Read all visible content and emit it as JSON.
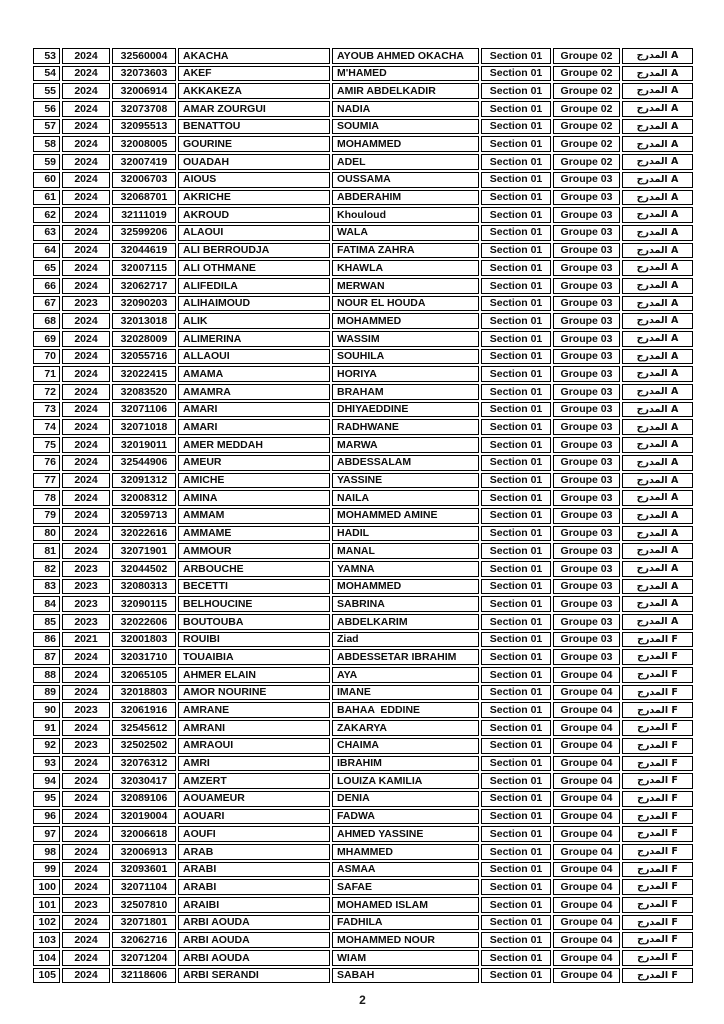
{
  "page": {
    "number": "2"
  },
  "colors": {
    "border": "#000000",
    "text": "#0d0d0d",
    "background": "#ffffff"
  },
  "table": {
    "rows": [
      {
        "no": "53",
        "year": "2024",
        "id": "32560004",
        "last": "AKACHA",
        "first": "AYOUB AHMED OKACHA",
        "section": "Section 01",
        "groupe": "Groupe 02",
        "amphi": "المدرج A"
      },
      {
        "no": "54",
        "year": "2024",
        "id": "32073603",
        "last": "AKEF",
        "first": "M'HAMED",
        "section": "Section 01",
        "groupe": "Groupe 02",
        "amphi": "المدرج A"
      },
      {
        "no": "55",
        "year": "2024",
        "id": "32006914",
        "last": "AKKAKEZA",
        "first": "AMIR ABDELKADIR",
        "section": "Section 01",
        "groupe": "Groupe 02",
        "amphi": "المدرج A"
      },
      {
        "no": "56",
        "year": "2024",
        "id": "32073708",
        "last": "AMAR ZOURGUI",
        "first": "NADIA",
        "section": "Section 01",
        "groupe": "Groupe 02",
        "amphi": "المدرج A"
      },
      {
        "no": "57",
        "year": "2024",
        "id": "32095513",
        "last": "BENATTOU",
        "first": "SOUMIA",
        "section": "Section 01",
        "groupe": "Groupe 02",
        "amphi": "المدرج A"
      },
      {
        "no": "58",
        "year": "2024",
        "id": "32008005",
        "last": "GOURINE",
        "first": "MOHAMMED",
        "section": "Section 01",
        "groupe": "Groupe 02",
        "amphi": "المدرج A"
      },
      {
        "no": "59",
        "year": "2024",
        "id": "32007419",
        "last": "OUADAH",
        "first": "ADEL",
        "section": "Section 01",
        "groupe": "Groupe 02",
        "amphi": "المدرج A"
      },
      {
        "no": "60",
        "year": "2024",
        "id": "32006703",
        "last": "AIOUS",
        "first": "OUSSAMA",
        "section": "Section 01",
        "groupe": "Groupe 03",
        "amphi": "المدرج A"
      },
      {
        "no": "61",
        "year": "2024",
        "id": "32068701",
        "last": "AKRICHE",
        "first": "ABDERAHIM",
        "section": "Section 01",
        "groupe": "Groupe 03",
        "amphi": "المدرج A"
      },
      {
        "no": "62",
        "year": "2024",
        "id": "32111019",
        "last": "AKROUD",
        "first": "Khouloud",
        "section": "Section 01",
        "groupe": "Groupe 03",
        "amphi": "المدرج A"
      },
      {
        "no": "63",
        "year": "2024",
        "id": "32599206",
        "last": "ALAOUI",
        "first": "WALA",
        "section": "Section 01",
        "groupe": "Groupe 03",
        "amphi": "المدرج A"
      },
      {
        "no": "64",
        "year": "2024",
        "id": "32044619",
        "last": "ALI BERROUDJA",
        "first": "FATIMA ZAHRA",
        "section": "Section 01",
        "groupe": "Groupe 03",
        "amphi": "المدرج A"
      },
      {
        "no": "65",
        "year": "2024",
        "id": "32007115",
        "last": "ALI OTHMANE",
        "first": "KHAWLA",
        "section": "Section 01",
        "groupe": "Groupe 03",
        "amphi": "المدرج A"
      },
      {
        "no": "66",
        "year": "2024",
        "id": "32062717",
        "last": "ALIFEDILA",
        "first": "MERWAN",
        "section": "Section 01",
        "groupe": "Groupe 03",
        "amphi": "المدرج A"
      },
      {
        "no": "67",
        "year": "2023",
        "id": "32090203",
        "last": "ALIHAIMOUD",
        "first": "NOUR EL HOUDA",
        "section": "Section 01",
        "groupe": "Groupe 03",
        "amphi": "المدرج A"
      },
      {
        "no": "68",
        "year": "2024",
        "id": "32013018",
        "last": "ALIK",
        "first": "MOHAMMED",
        "section": "Section 01",
        "groupe": "Groupe 03",
        "amphi": "المدرج A"
      },
      {
        "no": "69",
        "year": "2024",
        "id": "32028009",
        "last": "ALIMERINA",
        "first": "WASSIM",
        "section": "Section 01",
        "groupe": "Groupe 03",
        "amphi": "المدرج A"
      },
      {
        "no": "70",
        "year": "2024",
        "id": "32055716",
        "last": "ALLAOUI",
        "first": "SOUHILA",
        "section": "Section 01",
        "groupe": "Groupe 03",
        "amphi": "المدرج A"
      },
      {
        "no": "71",
        "year": "2024",
        "id": "32022415",
        "last": "AMAMA",
        "first": "HORIYA",
        "section": "Section 01",
        "groupe": "Groupe 03",
        "amphi": "المدرج A"
      },
      {
        "no": "72",
        "year": "2024",
        "id": "32083520",
        "last": "AMAMRA",
        "first": "BRAHAM",
        "section": "Section 01",
        "groupe": "Groupe 03",
        "amphi": "المدرج A"
      },
      {
        "no": "73",
        "year": "2024",
        "id": "32071106",
        "last": "AMARI",
        "first": "DHIYAEDDINE",
        "section": "Section 01",
        "groupe": "Groupe 03",
        "amphi": "المدرج A"
      },
      {
        "no": "74",
        "year": "2024",
        "id": "32071018",
        "last": "AMARI",
        "first": "RADHWANE",
        "section": "Section 01",
        "groupe": "Groupe 03",
        "amphi": "المدرج A"
      },
      {
        "no": "75",
        "year": "2024",
        "id": "32019011",
        "last": "AMER MEDDAH",
        "first": "MARWA",
        "section": "Section 01",
        "groupe": "Groupe 03",
        "amphi": "المدرج A"
      },
      {
        "no": "76",
        "year": "2024",
        "id": "32544906",
        "last": "AMEUR",
        "first": "ABDESSALAM",
        "section": "Section 01",
        "groupe": "Groupe 03",
        "amphi": "المدرج A"
      },
      {
        "no": "77",
        "year": "2024",
        "id": "32091312",
        "last": "AMICHE",
        "first": "YASSINE",
        "section": "Section 01",
        "groupe": "Groupe 03",
        "amphi": "المدرج A"
      },
      {
        "no": "78",
        "year": "2024",
        "id": "32008312",
        "last": "AMINA",
        "first": "NAILA",
        "section": "Section 01",
        "groupe": "Groupe 03",
        "amphi": "المدرج A"
      },
      {
        "no": "79",
        "year": "2024",
        "id": "32059713",
        "last": "AMMAM",
        "first": "MOHAMMED AMINE",
        "section": "Section 01",
        "groupe": "Groupe 03",
        "amphi": "المدرج A"
      },
      {
        "no": "80",
        "year": "2024",
        "id": "32022616",
        "last": "AMMAME",
        "first": "HADIL",
        "section": "Section 01",
        "groupe": "Groupe 03",
        "amphi": "المدرج A"
      },
      {
        "no": "81",
        "year": "2024",
        "id": "32071901",
        "last": "AMMOUR",
        "first": "MANAL",
        "section": "Section 01",
        "groupe": "Groupe 03",
        "amphi": "المدرج A"
      },
      {
        "no": "82",
        "year": "2023",
        "id": "32044502",
        "last": "ARBOUCHE",
        "first": "YAMNA",
        "section": "Section 01",
        "groupe": "Groupe 03",
        "amphi": "المدرج A"
      },
      {
        "no": "83",
        "year": "2023",
        "id": "32080313",
        "last": "BECETTI",
        "first": "MOHAMMED",
        "section": "Section 01",
        "groupe": "Groupe 03",
        "amphi": "المدرج A"
      },
      {
        "no": "84",
        "year": "2023",
        "id": "32090115",
        "last": "BELHOUCINE",
        "first": "SABRINA",
        "section": "Section 01",
        "groupe": "Groupe 03",
        "amphi": "المدرج A"
      },
      {
        "no": "85",
        "year": "2023",
        "id": "32022606",
        "last": "BOUTOUBA",
        "first": "ABDELKARIM",
        "section": "Section 01",
        "groupe": "Groupe 03",
        "amphi": "المدرج A"
      },
      {
        "no": "86",
        "year": "2021",
        "id": "32001803",
        "last": "ROUIBI",
        "first": "Ziad",
        "section": "Section 01",
        "groupe": "Groupe 03",
        "amphi": "المدرج F"
      },
      {
        "no": "87",
        "year": "2024",
        "id": "32031710",
        "last": "TOUAIBIA",
        "first": "ABDESSETAR IBRAHIM",
        "section": "Section 01",
        "groupe": "Groupe 03",
        "amphi": "المدرج F"
      },
      {
        "no": "88",
        "year": "2024",
        "id": "32065105",
        "last": "AHMER ELAIN",
        "first": "AYA",
        "section": "Section 01",
        "groupe": "Groupe 04",
        "amphi": "المدرج F"
      },
      {
        "no": "89",
        "year": "2024",
        "id": "32018803",
        "last": "AMOR NOURINE",
        "first": "IMANE",
        "section": "Section 01",
        "groupe": "Groupe 04",
        "amphi": "المدرج F"
      },
      {
        "no": "90",
        "year": "2023",
        "id": "32061916",
        "last": "AMRANE",
        "first": "BAHAA  EDDINE",
        "section": "Section 01",
        "groupe": "Groupe 04",
        "amphi": "المدرج F"
      },
      {
        "no": "91",
        "year": "2024",
        "id": "32545612",
        "last": "AMRANI",
        "first": "ZAKARYA",
        "section": "Section 01",
        "groupe": "Groupe 04",
        "amphi": "المدرج F"
      },
      {
        "no": "92",
        "year": "2023",
        "id": "32502502",
        "last": "AMRAOUI",
        "first": "CHAIMA",
        "section": "Section 01",
        "groupe": "Groupe 04",
        "amphi": "المدرج F"
      },
      {
        "no": "93",
        "year": "2024",
        "id": "32076312",
        "last": "AMRI",
        "first": "IBRAHIM",
        "section": "Section 01",
        "groupe": "Groupe 04",
        "amphi": "المدرج F"
      },
      {
        "no": "94",
        "year": "2024",
        "id": "32030417",
        "last": "AMZERT",
        "first": "LOUIZA KAMILIA",
        "section": "Section 01",
        "groupe": "Groupe 04",
        "amphi": "المدرج F"
      },
      {
        "no": "95",
        "year": "2024",
        "id": "32089106",
        "last": "AOUAMEUR",
        "first": "DENIA",
        "section": "Section 01",
        "groupe": "Groupe 04",
        "amphi": "المدرج F"
      },
      {
        "no": "96",
        "year": "2024",
        "id": "32019004",
        "last": "AOUARI",
        "first": "FADWA",
        "section": "Section 01",
        "groupe": "Groupe 04",
        "amphi": "المدرج F"
      },
      {
        "no": "97",
        "year": "2024",
        "id": "32006618",
        "last": "AOUFI",
        "first": "AHMED YASSINE",
        "section": "Section 01",
        "groupe": "Groupe 04",
        "amphi": "المدرج F"
      },
      {
        "no": "98",
        "year": "2024",
        "id": "32006913",
        "last": "ARAB",
        "first": "MHAMMED",
        "section": "Section 01",
        "groupe": "Groupe 04",
        "amphi": "المدرج F"
      },
      {
        "no": "99",
        "year": "2024",
        "id": "32093601",
        "last": "ARABI",
        "first": "ASMAA",
        "section": "Section 01",
        "groupe": "Groupe 04",
        "amphi": "المدرج F"
      },
      {
        "no": "100",
        "year": "2024",
        "id": "32071104",
        "last": "ARABI",
        "first": "SAFAE",
        "section": "Section 01",
        "groupe": "Groupe 04",
        "amphi": "المدرج F"
      },
      {
        "no": "101",
        "year": "2023",
        "id": "32507810",
        "last": "ARAIBI",
        "first": "MOHAMED ISLAM",
        "section": "Section 01",
        "groupe": "Groupe 04",
        "amphi": "المدرج F"
      },
      {
        "no": "102",
        "year": "2024",
        "id": "32071801",
        "last": "ARBI AOUDA",
        "first": "FADHILA",
        "section": "Section 01",
        "groupe": "Groupe 04",
        "amphi": "المدرج F"
      },
      {
        "no": "103",
        "year": "2024",
        "id": "32062716",
        "last": "ARBI AOUDA",
        "first": "MOHAMMED NOUR",
        "section": "Section 01",
        "groupe": "Groupe 04",
        "amphi": "المدرج F"
      },
      {
        "no": "104",
        "year": "2024",
        "id": "32071204",
        "last": "ARBI AOUDA",
        "first": "WIAM",
        "section": "Section 01",
        "groupe": "Groupe 04",
        "amphi": "المدرج F"
      },
      {
        "no": "105",
        "year": "2024",
        "id": "32118606",
        "last": "ARBI SERANDI",
        "first": "SABAH",
        "section": "Section 01",
        "groupe": "Groupe 04",
        "amphi": "المدرج F"
      }
    ]
  }
}
